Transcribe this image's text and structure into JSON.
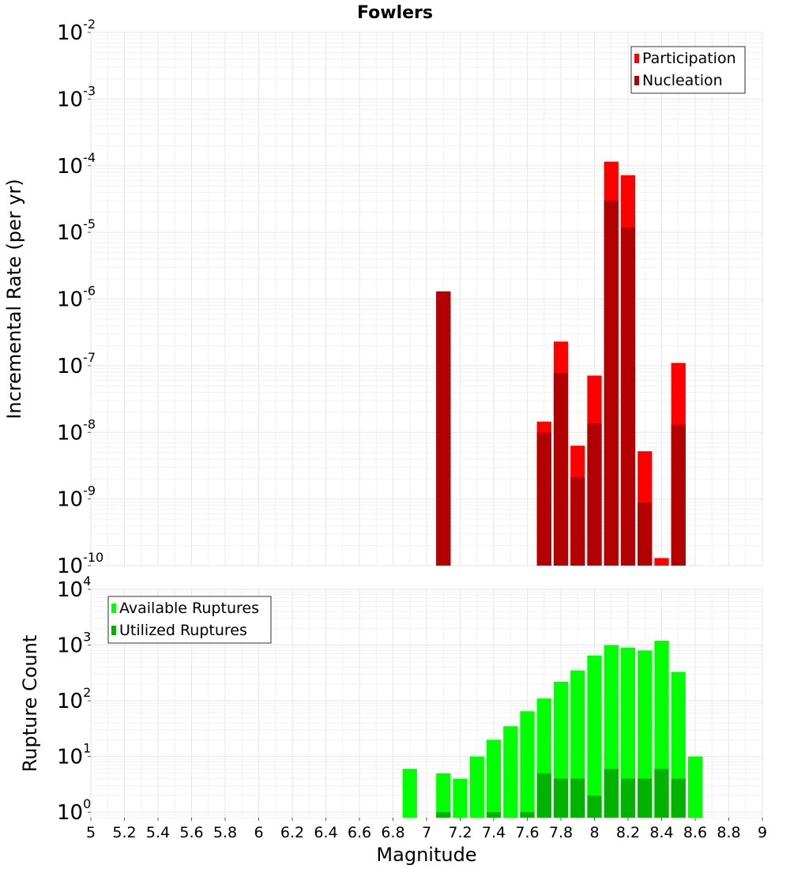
{
  "chart_data": [
    {
      "type": "bar",
      "title": "Fowlers",
      "ylabel": "Incremental Rate (per yr)",
      "xlabel": "",
      "yscale": "log",
      "ylim": [
        1e-10,
        0.01
      ],
      "xlim": [
        5,
        9
      ],
      "grid": true,
      "legend_position": "top-right",
      "y_ticks": [
        {
          "base": "10",
          "exp": "-10"
        },
        {
          "base": "10",
          "exp": "-9"
        },
        {
          "base": "10",
          "exp": "-8"
        },
        {
          "base": "10",
          "exp": "-7"
        },
        {
          "base": "10",
          "exp": "-6"
        },
        {
          "base": "10",
          "exp": "-5"
        },
        {
          "base": "10",
          "exp": "-4"
        },
        {
          "base": "10",
          "exp": "-3"
        },
        {
          "base": "10",
          "exp": "-2"
        }
      ],
      "bin_width": 0.1,
      "series": [
        {
          "name": "Participation",
          "color": "#ff0000",
          "x": [
            7.1,
            7.7,
            7.8,
            7.9,
            8.0,
            8.1,
            8.2,
            8.3,
            8.4,
            8.5
          ],
          "values": [
            1.3e-06,
            1.45e-08,
            2.3e-07,
            6.3e-09,
            7.1e-08,
            0.000115,
            7.2e-05,
            5.2e-09,
            1.3e-10,
            1.1e-07
          ]
        },
        {
          "name": "Nucleation",
          "color": "#b30000",
          "x": [
            7.1,
            7.7,
            7.8,
            7.9,
            8.0,
            8.1,
            8.2,
            8.3,
            8.5
          ],
          "values": [
            1.3e-06,
            1e-08,
            7.8e-08,
            2.1e-09,
            1.35e-08,
            3e-05,
            1.18e-05,
            8.8e-10,
            1.3e-08
          ]
        }
      ]
    },
    {
      "type": "bar",
      "title": "",
      "ylabel": "Rupture Count",
      "xlabel": "Magnitude",
      "yscale": "log",
      "ylim": [
        0.8,
        10000
      ],
      "xlim": [
        5,
        9
      ],
      "grid": true,
      "legend_position": "top-left",
      "y_ticks": [
        {
          "base": "10",
          "exp": "0"
        },
        {
          "base": "10",
          "exp": "1"
        },
        {
          "base": "10",
          "exp": "2"
        },
        {
          "base": "10",
          "exp": "3"
        },
        {
          "base": "10",
          "exp": "4"
        }
      ],
      "x_ticks": [
        "5",
        "5.2",
        "5.4",
        "5.6",
        "5.8",
        "6",
        "6.2",
        "6.4",
        "6.6",
        "6.8",
        "7",
        "7.2",
        "7.4",
        "7.6",
        "7.8",
        "8",
        "8.2",
        "8.4",
        "8.6",
        "8.8",
        "9"
      ],
      "bin_width": 0.1,
      "series": [
        {
          "name": "Available Ruptures",
          "color": "#00ff00",
          "x": [
            6.9,
            7.1,
            7.2,
            7.3,
            7.4,
            7.5,
            7.6,
            7.7,
            7.8,
            7.9,
            8.0,
            8.1,
            8.2,
            8.3,
            8.4,
            8.5,
            8.6
          ],
          "values": [
            6,
            5,
            4,
            10,
            20,
            35,
            65,
            110,
            220,
            350,
            650,
            1000,
            900,
            800,
            1200,
            330,
            10
          ]
        },
        {
          "name": "Utilized Ruptures",
          "color": "#00b300",
          "x": [
            7.1,
            7.4,
            7.6,
            7.7,
            7.8,
            7.9,
            8.0,
            8.1,
            8.2,
            8.3,
            8.4,
            8.5
          ],
          "values": [
            1,
            1,
            1,
            5,
            4,
            4,
            2,
            6,
            4,
            4,
            6,
            4
          ]
        }
      ]
    }
  ]
}
